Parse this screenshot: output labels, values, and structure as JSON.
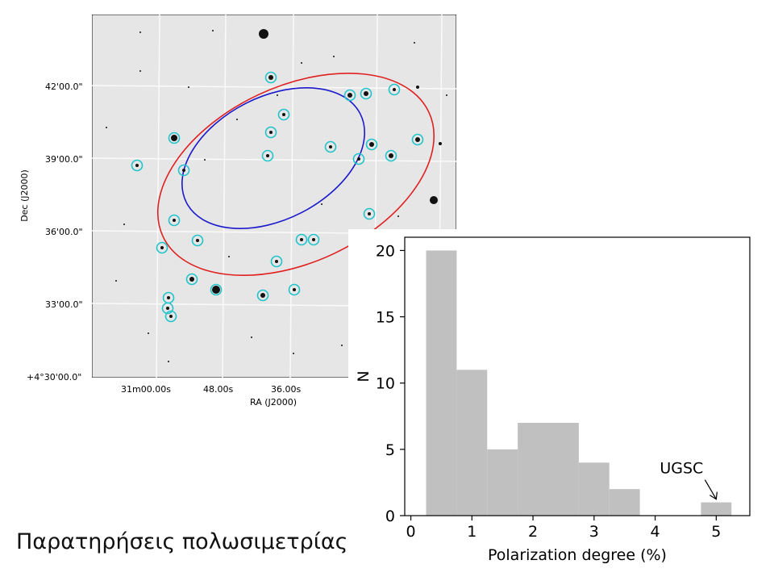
{
  "caption": "Παρατηρήσεις πολωσιμετρίας",
  "sky_image": {
    "xlabel": "RA (J2000)",
    "ylabel": "Dec (J2000)",
    "ra_ticks": [
      "31m00.00s",
      "48.00s",
      "36.00s"
    ],
    "dec_ticks": [
      "42'00.0\"",
      "39'00.0\"",
      "36'00.0\"",
      "33'00.0\"",
      "+4°30'00.0\""
    ],
    "colors": {
      "outer_ellipse": "#e02020",
      "inner_ellipse": "#1a1acc",
      "marker": "#22c4cc",
      "background": "#e6e6e6"
    }
  },
  "chart_data": {
    "type": "bar",
    "xlabel": "Polarization degree (%)",
    "ylabel": "N",
    "xlim": [
      -0.1,
      5.55
    ],
    "ylim": [
      0,
      21
    ],
    "xticks": [
      0,
      1,
      2,
      3,
      4,
      5
    ],
    "yticks": [
      0,
      5,
      10,
      15,
      20
    ],
    "bins": [
      {
        "x0": 0.25,
        "x1": 0.75,
        "count": 20
      },
      {
        "x0": 0.75,
        "x1": 1.25,
        "count": 11
      },
      {
        "x0": 1.25,
        "x1": 1.75,
        "count": 5
      },
      {
        "x0": 1.75,
        "x1": 2.25,
        "count": 7
      },
      {
        "x0": 2.25,
        "x1": 2.75,
        "count": 7
      },
      {
        "x0": 2.75,
        "x1": 3.25,
        "count": 4
      },
      {
        "x0": 3.25,
        "x1": 3.75,
        "count": 2
      },
      {
        "x0": 3.75,
        "x1": 4.25,
        "count": 0
      },
      {
        "x0": 4.25,
        "x1": 4.75,
        "count": 0
      },
      {
        "x0": 4.75,
        "x1": 5.25,
        "count": 1
      }
    ],
    "bar_color": "#c0c0c0",
    "annotation": {
      "text": "UGSC",
      "x": 5.0,
      "y": 1.0
    }
  }
}
